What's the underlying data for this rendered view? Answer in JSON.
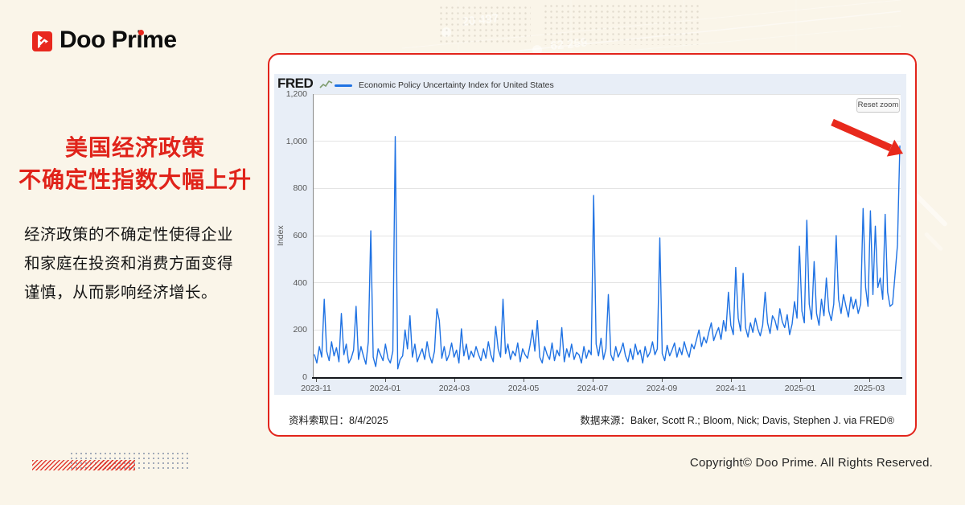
{
  "brand": {
    "name": "Doo Prime"
  },
  "headline": {
    "line1": "美国经济政策",
    "line2": "不确定性指数大幅上升"
  },
  "body": {
    "line1": "经济政策的不确定性使得企业",
    "line2": "和家庭在投资和消费方面变得",
    "line3": "谨慎，从而影响经济增长。"
  },
  "card": {
    "fred_logo": "FRED",
    "legend_label": "Economic Policy Uncertainty Index for United States",
    "reset_zoom_label": "Reset zoom",
    "date_label": "资料索取日：8/4/2025",
    "source_label": "数据来源：Baker, Scott R.; Bloom, Nick; Davis, Stephen J. via FRED®"
  },
  "footer": {
    "copyright": "Copyright© Doo Prime. All Rights Reserved."
  },
  "decor": {
    "wm1": "20 497",
    "wm2": "62 259"
  },
  "colors": {
    "accent_red": "#e2241b",
    "line_blue": "#1f72e3",
    "chart_bg": "#e8eef7",
    "canvas_bg": "#faf5e9"
  },
  "chart_data": {
    "type": "line",
    "title": "Economic Policy Uncertainty Index for United States",
    "ylabel": "Index",
    "ylim": [
      0,
      1200
    ],
    "ytick_values": [
      1200,
      1000,
      800,
      600,
      400,
      200,
      0
    ],
    "ytick_labels": [
      "1,200",
      "1,000",
      "800",
      "600",
      "400",
      "200",
      "0"
    ],
    "xtick_labels": [
      "2023-11",
      "2024-01",
      "2024-03",
      "2024-05",
      "2024-07",
      "2024-09",
      "2024-11",
      "2025-01",
      "2025-03"
    ],
    "x_range": [
      "2023-11-01",
      "2025-04-04"
    ],
    "note": "daily index, ~2-day samples estimated from pixels; key spikes: ~1020 (2024-01), ~620 (2023-12), ~770 (2024-07), ~590 (2024-09), ~980 final (2025-04)",
    "grid": "horizontal",
    "legend_position": "top-left",
    "values": [
      95,
      60,
      130,
      85,
      330,
      110,
      70,
      150,
      90,
      125,
      65,
      270,
      95,
      140,
      60,
      80,
      115,
      300,
      75,
      130,
      90,
      55,
      150,
      620,
      85,
      45,
      120,
      95,
      70,
      140,
      80,
      60,
      110,
      1020,
      35,
      75,
      90,
      200,
      120,
      260,
      85,
      140,
      65,
      95,
      120,
      75,
      150,
      90,
      60,
      110,
      290,
      240,
      80,
      130,
      70,
      95,
      145,
      85,
      115,
      60,
      205,
      90,
      140,
      75,
      110,
      85,
      130,
      95,
      70,
      120,
      80,
      150,
      95,
      65,
      215,
      120,
      85,
      330,
      100,
      140,
      75,
      110,
      90,
      145,
      65,
      120,
      95,
      80,
      135,
      200,
      110,
      240,
      85,
      60,
      130,
      95,
      75,
      145,
      70,
      115,
      90,
      210,
      65,
      120,
      85,
      140,
      75,
      105,
      95,
      60,
      130,
      80,
      115,
      95,
      770,
      140,
      90,
      165,
      75,
      120,
      350,
      95,
      70,
      130,
      85,
      110,
      145,
      90,
      65,
      120,
      75,
      140,
      95,
      115,
      60,
      130,
      85,
      105,
      150,
      95,
      120,
      590,
      100,
      70,
      135,
      90,
      115,
      145,
      85,
      125,
      95,
      150,
      110,
      85,
      140,
      120,
      160,
      200,
      130,
      170,
      145,
      190,
      230,
      155,
      185,
      210,
      160,
      240,
      195,
      360,
      220,
      180,
      465,
      250,
      195,
      440,
      210,
      170,
      230,
      190,
      250,
      205,
      175,
      220,
      360,
      230,
      185,
      260,
      240,
      200,
      290,
      235,
      210,
      265,
      180,
      225,
      320,
      250,
      555,
      280,
      230,
      665,
      310,
      245,
      490,
      270,
      220,
      330,
      260,
      420,
      280,
      240,
      310,
      600,
      330,
      270,
      350,
      300,
      255,
      340,
      290,
      330,
      270,
      310,
      715,
      380,
      300,
      705,
      350,
      640,
      380,
      420,
      330,
      690,
      360,
      300,
      310,
      430,
      560,
      980
    ]
  }
}
